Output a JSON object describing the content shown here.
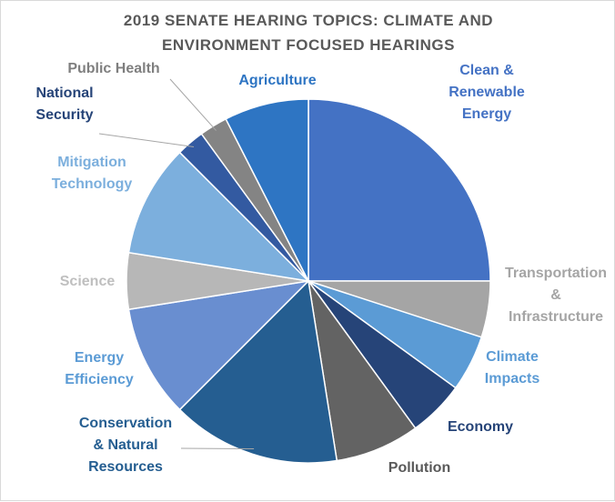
{
  "chart_data": {
    "type": "pie",
    "title": [
      "2019 SENATE HEARING TOPICS: CLIMATE AND",
      "ENVIRONMENT FOCUSED HEARINGS"
    ],
    "start_angle_deg": 0,
    "direction": "clockwise",
    "slices": [
      {
        "name": "Clean & Renewable Energy",
        "label_lines": [
          "Clean &",
          "Renewable",
          "Energy"
        ],
        "value": 25,
        "color": "#4472C4",
        "label_color": "#4472C4"
      },
      {
        "name": "Transportation & Infrastructure",
        "label_lines": [
          "Transportation",
          "&",
          "Infrastructure"
        ],
        "value": 5,
        "color": "#A5A5A5",
        "label_color": "#A5A5A5"
      },
      {
        "name": "Climate Impacts",
        "label_lines": [
          "Climate",
          "Impacts"
        ],
        "value": 5,
        "color": "#5B9BD5",
        "label_color": "#5B9BD5"
      },
      {
        "name": "Economy",
        "label_lines": [
          "Economy"
        ],
        "value": 5,
        "color": "#264478",
        "label_color": "#264478"
      },
      {
        "name": "Pollution",
        "label_lines": [
          "Pollution"
        ],
        "value": 7.5,
        "color": "#636363",
        "label_color": "#595959"
      },
      {
        "name": "Conservation & Natural Resources",
        "label_lines": [
          "Conservation",
          "& Natural",
          "Resources"
        ],
        "value": 15,
        "color": "#255E91",
        "label_color": "#255E91"
      },
      {
        "name": "Energy Efficiency",
        "label_lines": [
          "Energy",
          "Efficiency"
        ],
        "value": 10,
        "color": "#698ED0",
        "label_color": "#5B9BD5"
      },
      {
        "name": "Science",
        "label_lines": [
          "Science"
        ],
        "value": 5,
        "color": "#B7B7B7",
        "label_color": "#BFBFBF"
      },
      {
        "name": "Mitigation Technology",
        "label_lines": [
          "Mitigation",
          "Technology"
        ],
        "value": 10,
        "color": "#7CAFDD",
        "label_color": "#7CAFDD"
      },
      {
        "name": "National Security",
        "label_lines": [
          "National",
          "Security"
        ],
        "value": 2.5,
        "color": "#335AA1",
        "label_color": "#264478"
      },
      {
        "name": "Public Health",
        "label_lines": [
          "Public Health"
        ],
        "value": 2.5,
        "color": "#848484",
        "label_color": "#7F7F7F"
      },
      {
        "name": "Agriculture",
        "label_lines": [
          "Agriculture"
        ],
        "value": 7.5,
        "color": "#2E75C3",
        "label_color": "#2E75C3"
      }
    ]
  }
}
